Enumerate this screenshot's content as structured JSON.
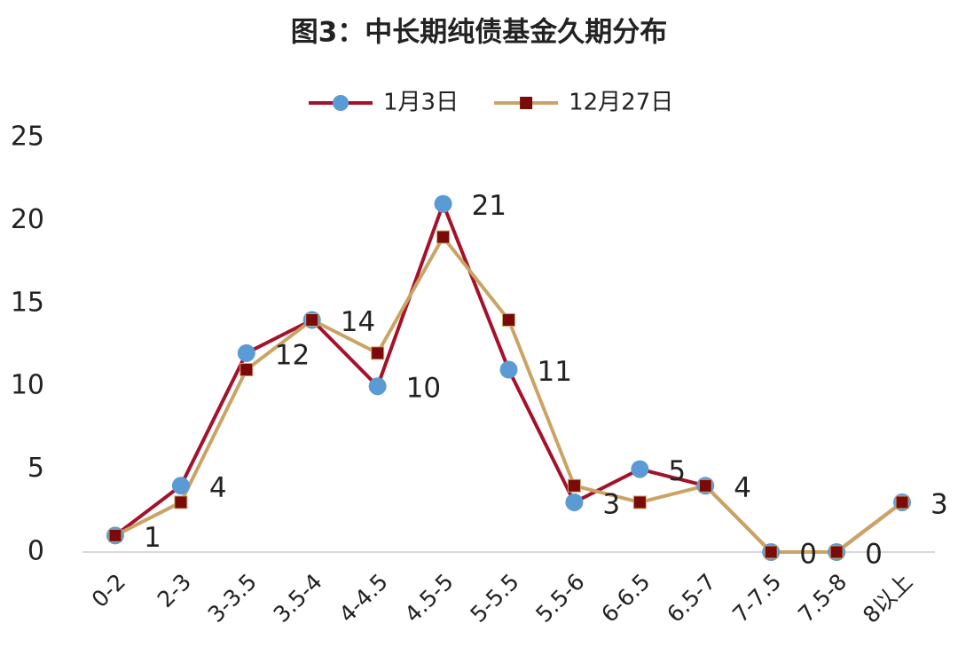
{
  "chart_data": {
    "type": "line",
    "title": "图3：中长期纯债基金久期分布",
    "categories": [
      "0-2",
      "2-3",
      "3-3.5",
      "3.5-4",
      "4-4.5",
      "4.5-5",
      "5-5.5",
      "5.5-6",
      "6-6.5",
      "6.5-7",
      "7-7.5",
      "7.5-8",
      "8以上"
    ],
    "series": [
      {
        "name": "1月3日",
        "color": "#a5112a",
        "marker": "circle",
        "marker_color": "#5b9bd5",
        "data_labels": true,
        "values": [
          1,
          4,
          12,
          14,
          10,
          21,
          11,
          3,
          5,
          4,
          0,
          0,
          3
        ]
      },
      {
        "name": "12月27日",
        "color": "#c9a465",
        "marker": "square",
        "marker_color": "#7b0a0a",
        "data_labels": false,
        "values": [
          1,
          3,
          11,
          14,
          12,
          19,
          14,
          4,
          3,
          4,
          0,
          0,
          3
        ]
      }
    ],
    "ylim": [
      0,
      25
    ],
    "yticks": [
      0,
      5,
      10,
      15,
      20,
      25
    ],
    "grid": false,
    "legend": "top"
  }
}
